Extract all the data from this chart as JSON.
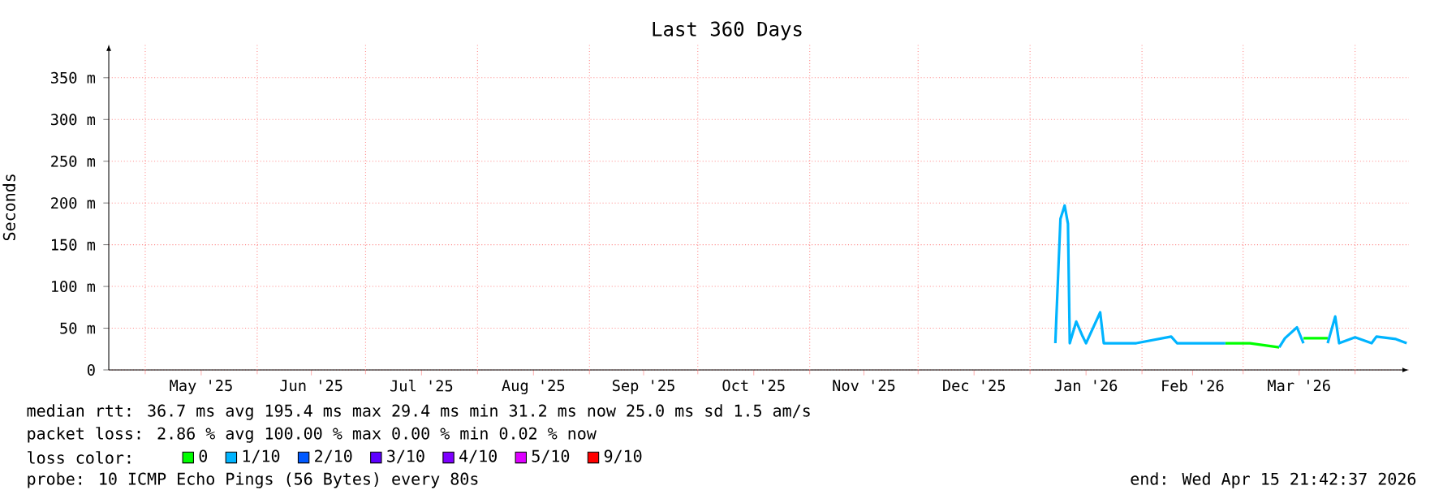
{
  "chart_data": {
    "type": "line",
    "title": "Last 360 Days",
    "ylabel": "Seconds",
    "legend_title": "loss color:",
    "xlim": [
      "2025-04-20T21:42",
      "2026-04-15T21:42"
    ],
    "xticks": [
      {
        "value": "2025-05-01",
        "label": null
      },
      {
        "value": "2025-05-16T12:00",
        "label": "May '25"
      },
      {
        "value": "2025-06-01",
        "label": null
      },
      {
        "value": "2025-06-16",
        "label": "Jun '25"
      },
      {
        "value": "2025-07-01",
        "label": null
      },
      {
        "value": "2025-07-16T12:00",
        "label": "Jul '25"
      },
      {
        "value": "2025-08-01",
        "label": null
      },
      {
        "value": "2025-08-16T12:00",
        "label": "Aug '25"
      },
      {
        "value": "2025-09-01",
        "label": null
      },
      {
        "value": "2025-09-16",
        "label": "Sep '25"
      },
      {
        "value": "2025-10-01",
        "label": null
      },
      {
        "value": "2025-10-16T12:00",
        "label": "Oct '25"
      },
      {
        "value": "2025-11-01",
        "label": null
      },
      {
        "value": "2025-11-16",
        "label": "Nov '25"
      },
      {
        "value": "2025-12-01",
        "label": null
      },
      {
        "value": "2025-12-16T12:00",
        "label": "Dec '25"
      },
      {
        "value": "2026-01-01",
        "label": null
      },
      {
        "value": "2026-01-16T12:00",
        "label": "Jan '26"
      },
      {
        "value": "2026-02-01",
        "label": null
      },
      {
        "value": "2026-02-15",
        "label": "Feb '26"
      },
      {
        "value": "2026-03-01",
        "label": null
      },
      {
        "value": "2026-03-16T12:00",
        "label": "Mar '26"
      },
      {
        "value": "2026-04-01",
        "label": null
      }
    ],
    "ylim": [
      0,
      390
    ],
    "yticks": [
      0,
      {
        "value": 50,
        "label": "50 m"
      },
      {
        "value": 100,
        "label": "100 m"
      },
      {
        "value": 150,
        "label": "150 m"
      },
      {
        "value": 200,
        "label": "200 m"
      },
      {
        "value": 250,
        "label": "250 m"
      },
      {
        "value": 300,
        "label": "300 m"
      },
      {
        "value": 350,
        "label": "350 m"
      }
    ],
    "grid": true,
    "legend": "bottom",
    "series": [
      {
        "name": "0",
        "color": "#00ff00",
        "x": [
          "2026-02-24T02:00",
          "2026-03-02T22:00",
          "2026-03-11",
          null,
          "2026-03-17T17:00",
          "2026-03-19T22:00",
          "2026-03-24T10:00"
        ],
        "values": [
          32,
          32,
          27,
          null,
          38,
          38,
          38
        ]
      },
      {
        "name": "1/10",
        "color": "#00b4ff",
        "x": [
          "2026-01-08",
          "2026-01-09T10:00",
          "2026-01-10T14:00",
          "2026-01-11T12:00",
          "2026-01-12",
          "2026-01-13T19:00",
          "2026-01-15T14:00",
          "2026-01-16T12:00",
          "2026-01-20T10:00",
          "2026-01-21T10:00",
          "2026-01-30T10:00",
          "2026-02-09T02:00",
          "2026-02-10T17:00",
          "2026-02-24T02:00",
          null,
          "2026-03-11",
          "2026-03-12T14:00",
          "2026-03-15T22:00",
          "2026-03-17T17:00",
          null,
          "2026-03-24T10:00",
          "2026-03-26T12:00",
          "2026-03-27T14:00",
          "2026-04-01",
          "2026-04-05T14:00",
          "2026-04-06T22:00",
          "2026-04-12T07:00",
          "2026-04-15T07:00"
        ],
        "values": [
          32,
          181,
          197,
          175,
          32,
          58,
          40,
          32,
          69,
          32,
          32,
          40,
          32,
          32,
          null,
          27,
          38,
          51,
          32,
          null,
          32,
          64,
          32,
          39,
          32,
          40,
          37,
          32
        ]
      },
      {
        "name": "2/10",
        "color": "#0059ff"
      },
      {
        "name": "3/10",
        "color": "#5e00ff"
      },
      {
        "name": "4/10",
        "color": "#7e00ff"
      },
      {
        "name": "5/10",
        "color": "#dd00ff"
      },
      {
        "name": "9/10",
        "color": "#ff0000"
      }
    ],
    "annotations": [
      "median rtt: 36.7 ms avg 195.4 ms max 29.4 ms min 31.2 ms now 25.0 ms sd 1.5 am/s",
      "packet loss: 2.86 % avg 100.00 % max 0.00 % min 0.02 % now",
      "probe: 10 ICMP Echo Pings (56 Bytes) every 80s",
      "end: Wed Apr 15 21:42:37 2026"
    ]
  }
}
